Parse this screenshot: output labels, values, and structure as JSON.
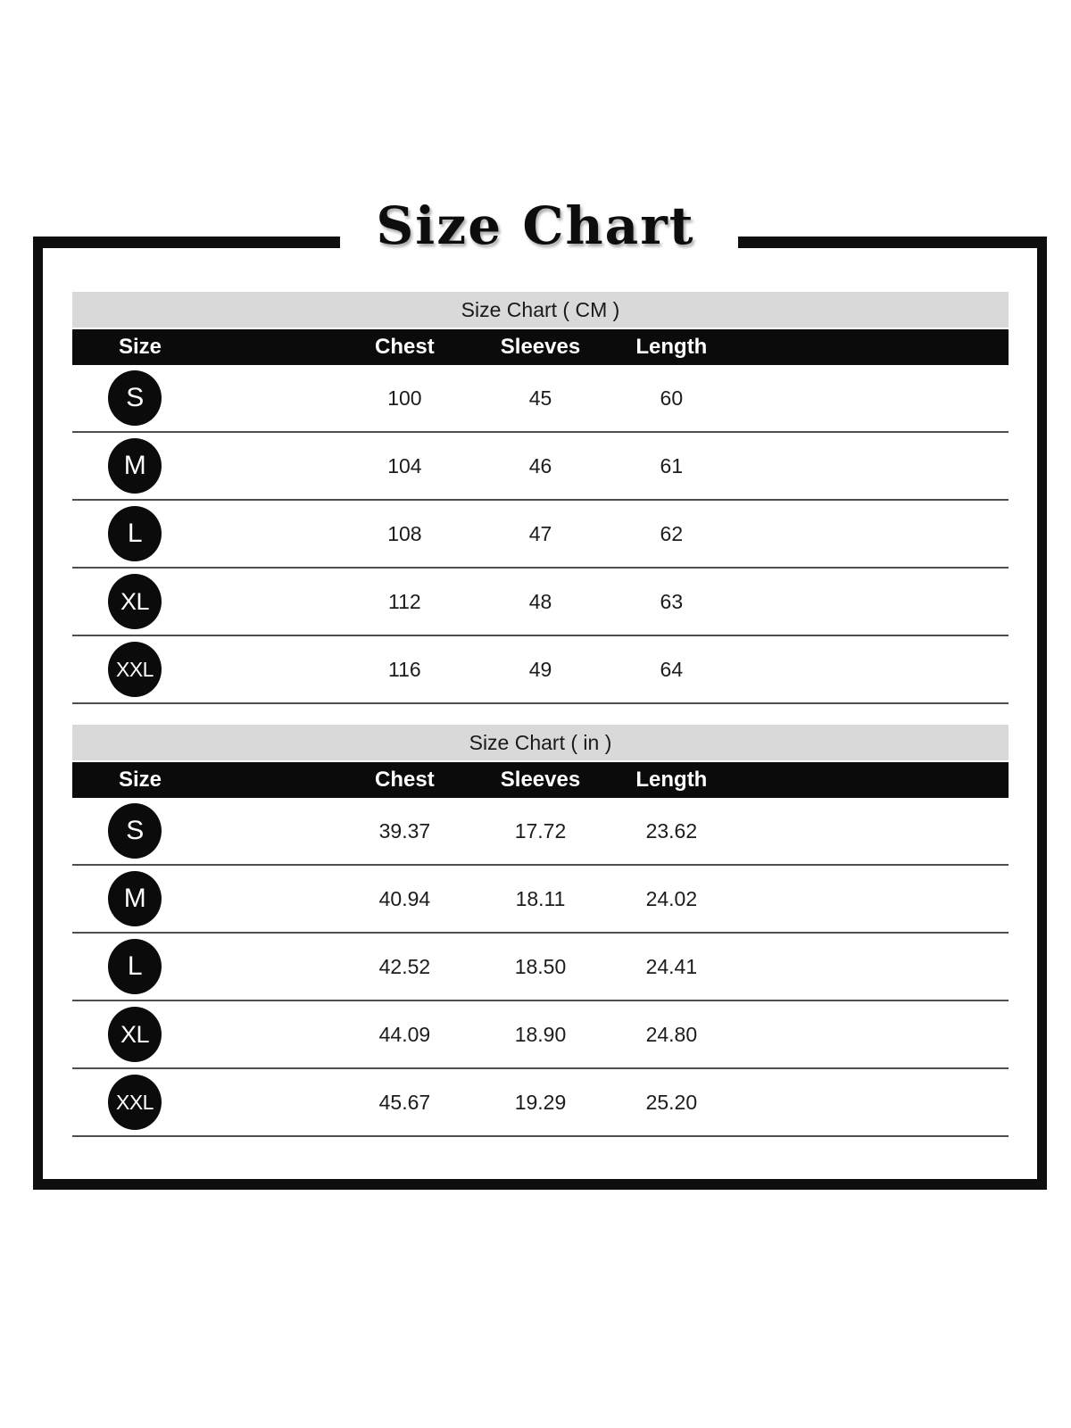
{
  "title": "Size Chart",
  "colors": {
    "page_bg": "#ffffff",
    "frame": "#0e0e0e",
    "band_bg": "#d9d9d9",
    "header_bg": "#0b0b0b",
    "header_text": "#ffffff",
    "badge_bg": "#0b0b0b",
    "value_text": "#1c1c1c",
    "row_line": "#4f4f4f"
  },
  "tables": [
    {
      "band_label": "Size Chart ( CM )",
      "columns": [
        "Size",
        "Chest",
        "Sleeves",
        "Length"
      ],
      "rows": [
        {
          "size": "S",
          "chest": "100",
          "sleeves": "45",
          "length": "60"
        },
        {
          "size": "M",
          "chest": "104",
          "sleeves": "46",
          "length": "61"
        },
        {
          "size": "L",
          "chest": "108",
          "sleeves": "47",
          "length": "62"
        },
        {
          "size": "XL",
          "chest": "112",
          "sleeves": "48",
          "length": "63"
        },
        {
          "size": "XXL",
          "chest": "116",
          "sleeves": "49",
          "length": "64"
        }
      ]
    },
    {
      "band_label": "Size Chart ( in )",
      "columns": [
        "Size",
        "Chest",
        "Sleeves",
        "Length"
      ],
      "rows": [
        {
          "size": "S",
          "chest": "39.37",
          "sleeves": "17.72",
          "length": "23.62"
        },
        {
          "size": "M",
          "chest": "40.94",
          "sleeves": "18.11",
          "length": "24.02"
        },
        {
          "size": "L",
          "chest": "42.52",
          "sleeves": "18.50",
          "length": "24.41"
        },
        {
          "size": "XL",
          "chest": "44.09",
          "sleeves": "18.90",
          "length": "24.80"
        },
        {
          "size": "XXL",
          "chest": "45.67",
          "sleeves": "19.29",
          "length": "25.20"
        }
      ]
    }
  ]
}
